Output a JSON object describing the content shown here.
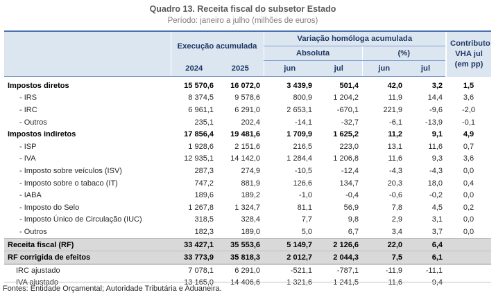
{
  "title": "Quadro 13. Receita fiscal do subsetor Estado",
  "subtitle": "Período: janeiro a julho (milhões de euros)",
  "headers": {
    "exec": "Execução acumulada",
    "var": "Variação homóloga acumulada",
    "abs": "Absoluta",
    "pct": "(%)",
    "contrib": "Contributo VHA jul (em pp)",
    "contrib_line1": "Contributo",
    "contrib_line2": "VHA jul",
    "contrib_line3": "(em pp)",
    "y2024": "2024",
    "y2025": "2025",
    "abs_jun": "jun",
    "abs_jul": "jul",
    "pct_jun": "jun",
    "pct_jul": "jul"
  },
  "rows": [
    {
      "label": "Impostos diretos",
      "v2024": "15 570,6",
      "v2025": "16 072,0",
      "abs_jun": "3 439,9",
      "abs_jul": "501,4",
      "pct_jun": "42,0",
      "pct_jul": "3,2",
      "contrib": "1,5"
    },
    {
      "label": "- IRS",
      "v2024": "8 374,5",
      "v2025": "9 578,6",
      "abs_jun": "800,9",
      "abs_jul": "1 204,2",
      "pct_jun": "11,9",
      "pct_jul": "14,4",
      "contrib": "3,6"
    },
    {
      "label": "- IRC",
      "v2024": "6 961,1",
      "v2025": "6 291,0",
      "abs_jun": "2 653,1",
      "abs_jul": "-670,1",
      "pct_jun": "221,9",
      "pct_jul": "-9,6",
      "contrib": "-2,0"
    },
    {
      "label": "- Outros",
      "v2024": "235,1",
      "v2025": "202,4",
      "abs_jun": "-14,1",
      "abs_jul": "-32,7",
      "pct_jun": "-6,1",
      "pct_jul": "-13,9",
      "contrib": "-0,1"
    },
    {
      "label": "Impostos indiretos",
      "v2024": "17 856,4",
      "v2025": "19 481,6",
      "abs_jun": "1 709,9",
      "abs_jul": "1 625,2",
      "pct_jun": "11,2",
      "pct_jul": "9,1",
      "contrib": "4,9"
    },
    {
      "label": "- ISP",
      "v2024": "1 928,6",
      "v2025": "2 151,6",
      "abs_jun": "216,5",
      "abs_jul": "223,0",
      "pct_jun": "13,1",
      "pct_jul": "11,6",
      "contrib": "0,7"
    },
    {
      "label": "- IVA",
      "v2024": "12 935,1",
      "v2025": "14 142,0",
      "abs_jun": "1 284,4",
      "abs_jul": "1 206,8",
      "pct_jun": "11,6",
      "pct_jul": "9,3",
      "contrib": "3,6"
    },
    {
      "label": "- Imposto sobre veículos (ISV)",
      "v2024": "287,3",
      "v2025": "274,9",
      "abs_jun": "-10,5",
      "abs_jul": "-12,4",
      "pct_jun": "-4,3",
      "pct_jul": "-4,3",
      "contrib": "0,0"
    },
    {
      "label": "- Imposto sobre o tabaco (IT)",
      "v2024": "747,2",
      "v2025": "881,9",
      "abs_jun": "126,6",
      "abs_jul": "134,7",
      "pct_jun": "20,3",
      "pct_jul": "18,0",
      "contrib": "0,4"
    },
    {
      "label": "- IABA",
      "v2024": "189,6",
      "v2025": "189,2",
      "abs_jun": "-1,0",
      "abs_jul": "-0,4",
      "pct_jun": "-0,6",
      "pct_jul": "-0,2",
      "contrib": "0,0"
    },
    {
      "label": "- Imposto do Selo",
      "v2024": "1 267,8",
      "v2025": "1 324,7",
      "abs_jun": "81,1",
      "abs_jul": "56,9",
      "pct_jun": "7,8",
      "pct_jul": "4,5",
      "contrib": "0,2"
    },
    {
      "label": "- Imposto Único de Circulação (IUC)",
      "v2024": "318,5",
      "v2025": "328,4",
      "abs_jun": "7,7",
      "abs_jul": "9,8",
      "pct_jun": "2,9",
      "pct_jul": "3,1",
      "contrib": "0,0"
    },
    {
      "label": "- Outros",
      "v2024": "182,3",
      "v2025": "189,0",
      "abs_jun": "5,0",
      "abs_jul": "6,7",
      "pct_jun": "3,4",
      "pct_jul": "3,7",
      "contrib": "0,0"
    },
    {
      "label": "Receita fiscal (RF)",
      "v2024": "33 427,1",
      "v2025": "35 553,6",
      "abs_jun": "5 149,7",
      "abs_jul": "2 126,6",
      "pct_jun": "22,0",
      "pct_jul": "6,4",
      "contrib": ""
    },
    {
      "label": "RF corrigida de efeitos",
      "v2024": "33 773,9",
      "v2025": "35 818,3",
      "abs_jun": "2 012,7",
      "abs_jul": "2 044,3",
      "pct_jun": "7,5",
      "pct_jul": "6,1",
      "contrib": ""
    },
    {
      "label": "IRC ajustado",
      "v2024": "7 078,1",
      "v2025": "6 291,0",
      "abs_jun": "-521,1",
      "abs_jul": "-787,1",
      "pct_jun": "-11,9",
      "pct_jul": "-11,1",
      "contrib": ""
    },
    {
      "label": "IVA ajustado",
      "v2024": "13 165,0",
      "v2025": "14 406,6",
      "abs_jun": "1 321,6",
      "abs_jul": "1 241,5",
      "pct_jun": "11,6",
      "pct_jul": "9,4",
      "contrib": ""
    }
  ],
  "footer": "Fontes: Entidade Orçamental; Autoridade Tributária e Aduaneira."
}
